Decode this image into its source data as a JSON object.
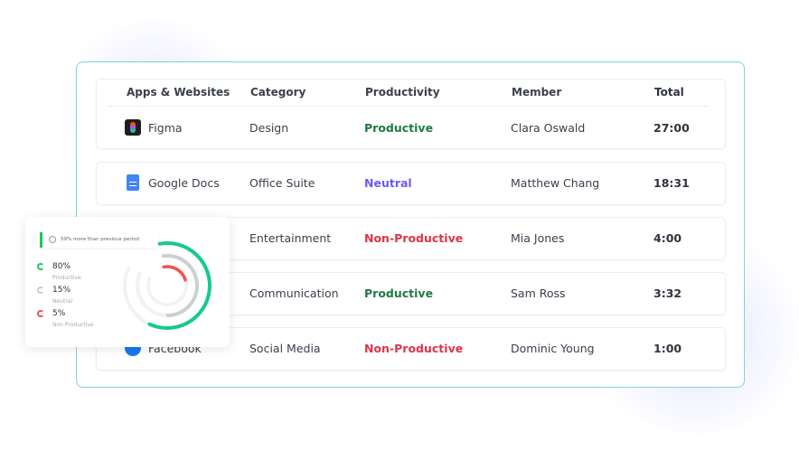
{
  "table": {
    "headers": [
      "Apps & Websites",
      "Category",
      "Productivity",
      "Member",
      "Total"
    ],
    "rows": [
      {
        "app": "Figma",
        "icon": "figma-icon",
        "category": "Design",
        "productivity": "Productive",
        "member": "Clara Oswald",
        "total": "27:00"
      },
      {
        "app": "Google Docs",
        "icon": "google-docs-icon",
        "category": "Office Suite",
        "productivity": "Neutral",
        "member": "Matthew Chang",
        "total": "18:31"
      },
      {
        "app": "",
        "icon": "",
        "category": "Entertainment",
        "productivity": "Non-Productive",
        "member": "Mia Jones",
        "total": "4:00"
      },
      {
        "app": "",
        "icon": "",
        "category": "Communication",
        "productivity": "Productive",
        "member": "Sam Ross",
        "total": "3:32"
      },
      {
        "app": "Facebook",
        "icon": "facebook-icon",
        "category": "Social Media",
        "productivity": "Non-Productive",
        "member": "Dominic Young",
        "total": "1:00"
      }
    ]
  },
  "colors": {
    "Productive": "#1f7a45",
    "Neutral": "#6b5cf6",
    "Non-Productive": "#e0334a"
  },
  "summary": {
    "note": "59% more than previous period",
    "items": [
      {
        "value": "80%",
        "label": "Productive",
        "color": "#17c98f",
        "fraction": 0.8
      },
      {
        "value": "15%",
        "label": "Neutral",
        "color": "#ccd0d5",
        "fraction": 0.15
      },
      {
        "value": "5%",
        "label": "Non Productive",
        "color": "#ef5350",
        "fraction": 0.05
      }
    ]
  }
}
